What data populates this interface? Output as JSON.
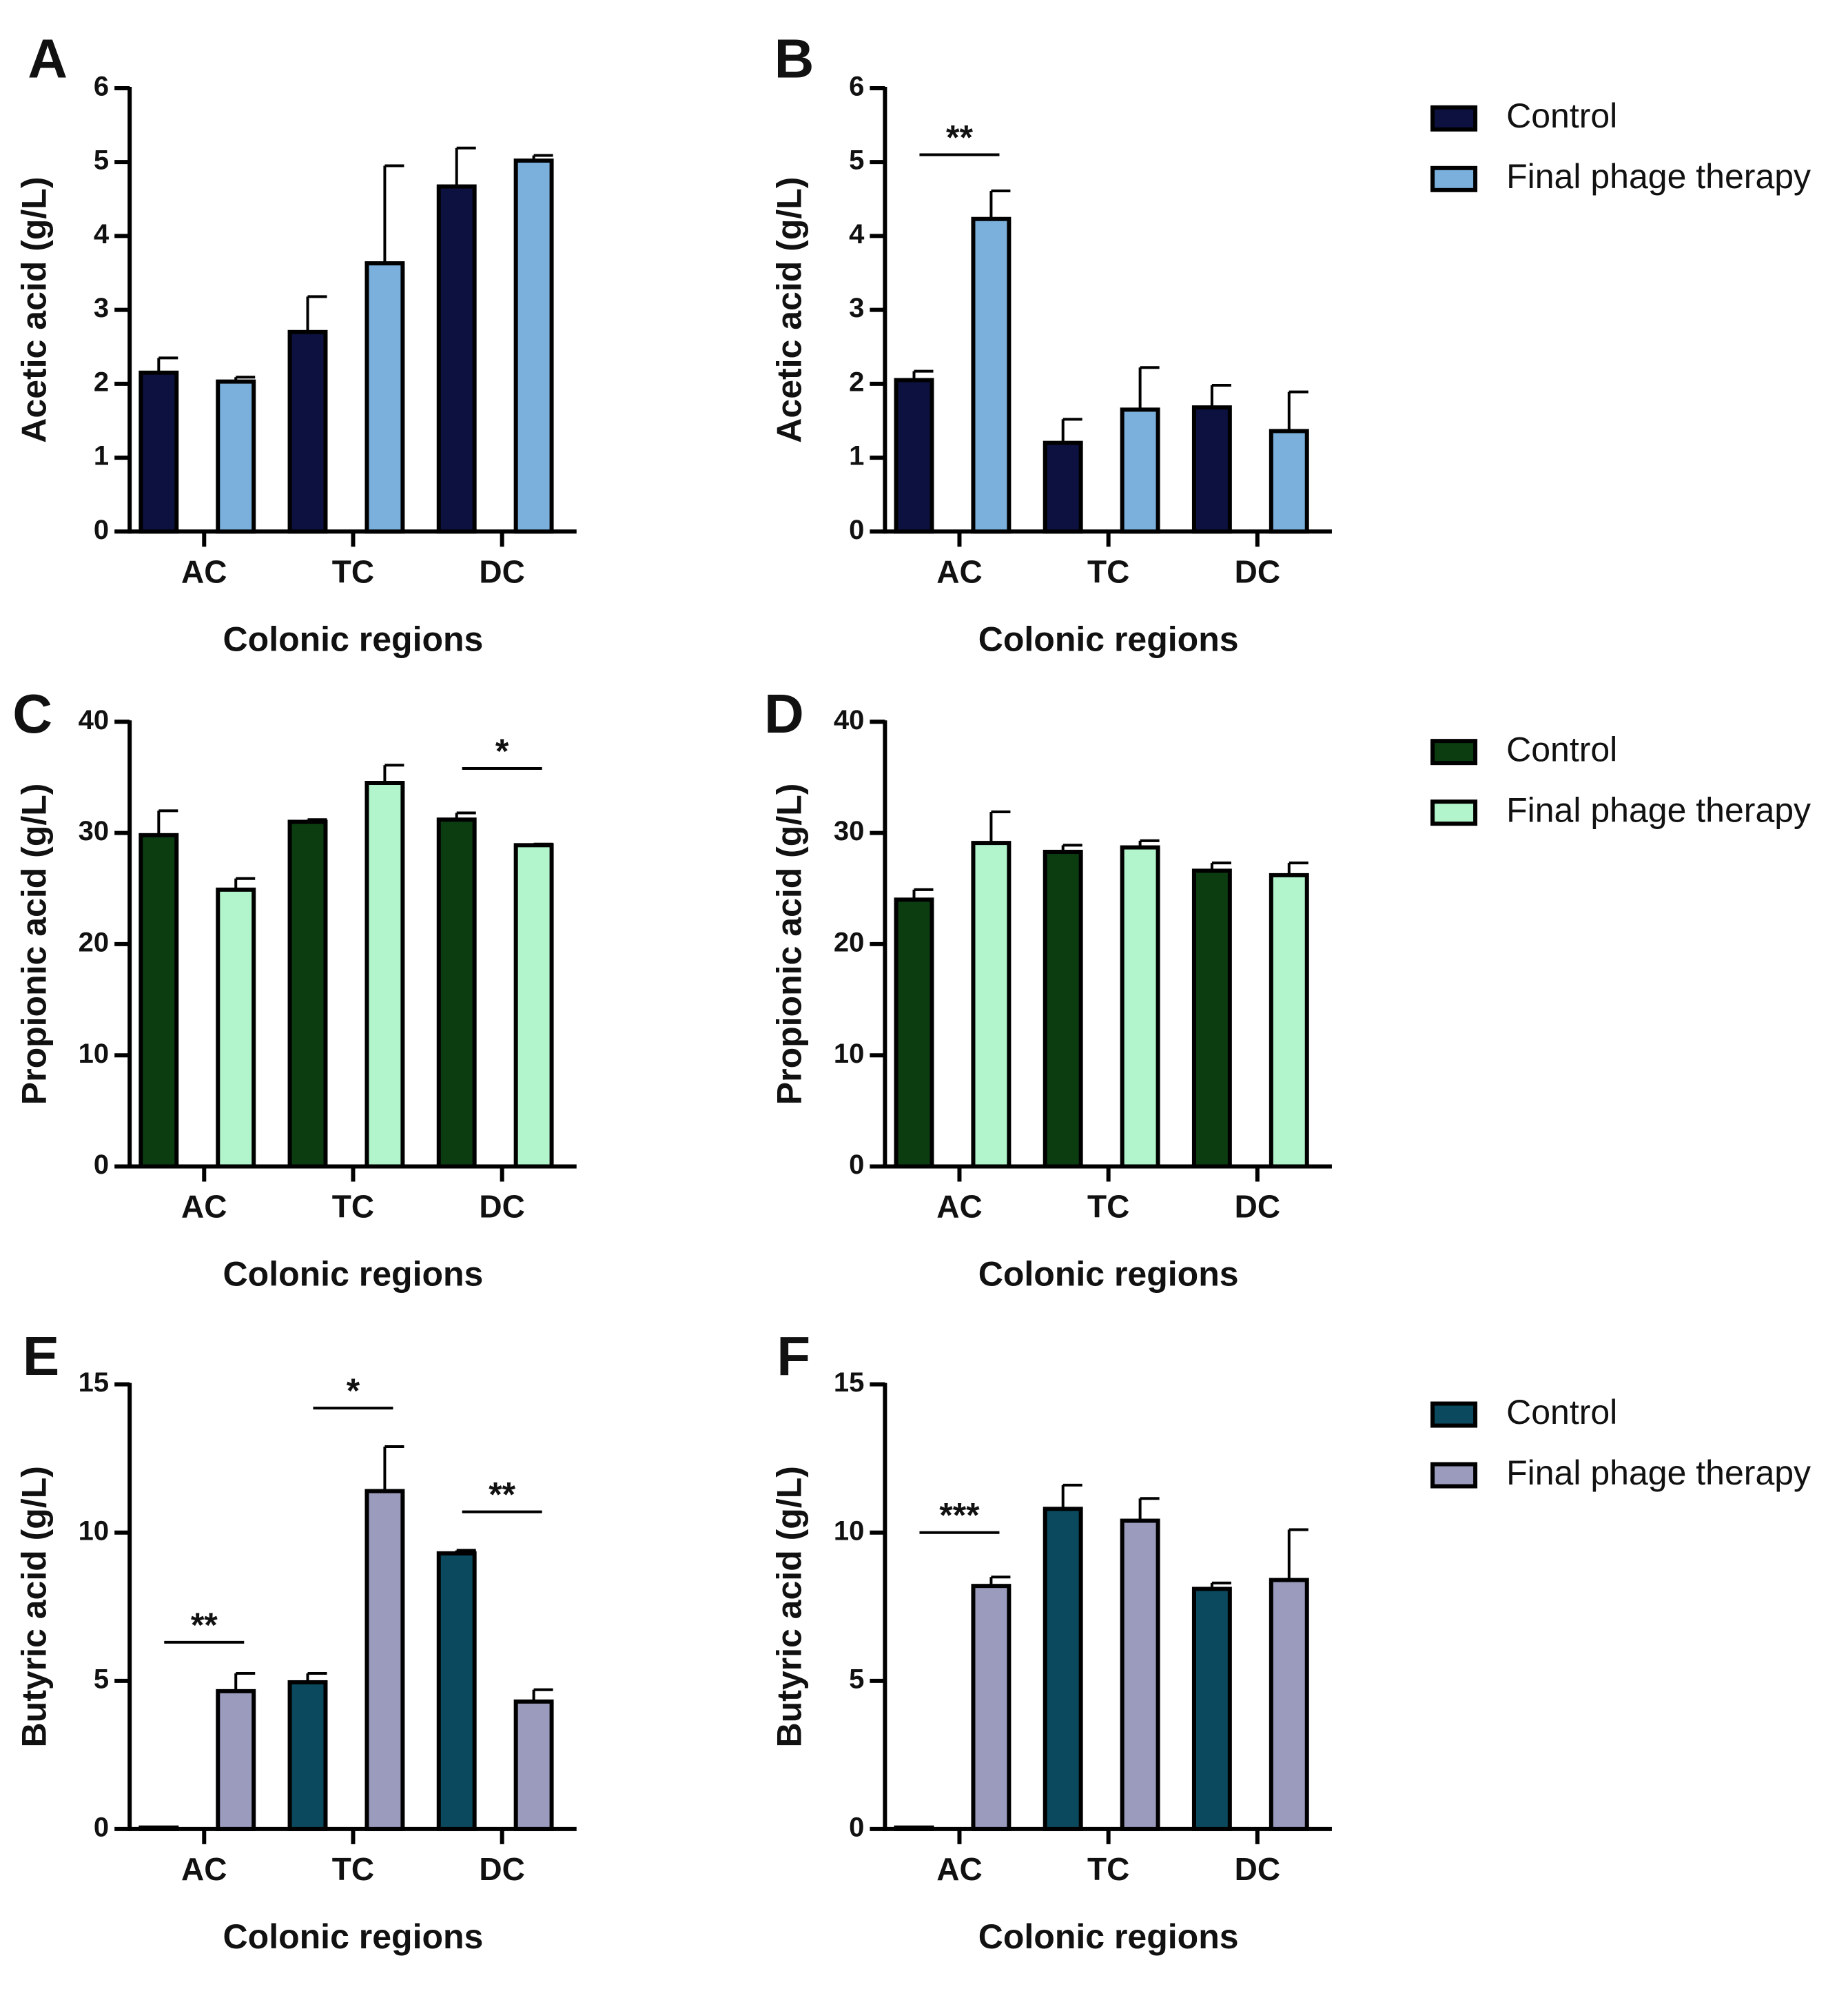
{
  "chart_data": [
    {
      "panel": "A",
      "type": "bar",
      "categories": [
        "AC",
        "TC",
        "DC"
      ],
      "xlabel": "Colonic regions",
      "ylabel": "Acetic acid (g/L)",
      "ylim": [
        0,
        6
      ],
      "yticks": [
        "0",
        "1",
        "2",
        "3",
        "4",
        "5",
        "6"
      ],
      "series": [
        {
          "name": "Control",
          "color": "#0d1140",
          "values": [
            2.15,
            2.7,
            4.67
          ],
          "errors": [
            0.2,
            0.48,
            0.52
          ]
        },
        {
          "name": "Final phage therapy",
          "color": "#7ab0db",
          "values": [
            2.03,
            3.63,
            5.02
          ],
          "errors": [
            0.06,
            1.32,
            0.07
          ]
        }
      ],
      "significance": []
    },
    {
      "panel": "B",
      "type": "bar",
      "categories": [
        "AC",
        "TC",
        "DC"
      ],
      "xlabel": "Colonic regions",
      "ylabel": "Acetic acid (g/L)",
      "ylim": [
        0,
        6
      ],
      "yticks": [
        "0",
        "1",
        "2",
        "3",
        "4",
        "5",
        "6"
      ],
      "series": [
        {
          "name": "Control",
          "color": "#0d1140",
          "values": [
            2.05,
            1.2,
            1.68
          ],
          "errors": [
            0.12,
            0.32,
            0.3
          ]
        },
        {
          "name": "Final phage therapy",
          "color": "#7ab0db",
          "values": [
            4.23,
            1.65,
            1.36
          ],
          "errors": [
            0.38,
            0.57,
            0.53
          ]
        }
      ],
      "significance": [
        {
          "category": "AC",
          "label": "**",
          "line_y": 5.1
        }
      ]
    },
    {
      "panel": "C",
      "type": "bar",
      "categories": [
        "AC",
        "TC",
        "DC"
      ],
      "xlabel": "Colonic regions",
      "ylabel": "Propionic acid (g/L)",
      "ylim": [
        0,
        40
      ],
      "yticks": [
        "0",
        "10",
        "20",
        "30",
        "40"
      ],
      "series": [
        {
          "name": "Control",
          "color": "#0b3d10",
          "values": [
            29.8,
            31.0,
            31.2
          ],
          "errors": [
            2.2,
            0.2,
            0.6
          ]
        },
        {
          "name": "Final phage therapy",
          "color": "#b2f5cc",
          "values": [
            24.9,
            34.5,
            28.9
          ],
          "errors": [
            1.0,
            1.6,
            0.1
          ]
        }
      ],
      "significance": [
        {
          "category": "DC",
          "label": "*",
          "line_y": 35.8
        }
      ]
    },
    {
      "panel": "D",
      "type": "bar",
      "categories": [
        "AC",
        "TC",
        "DC"
      ],
      "xlabel": "Colonic regions",
      "ylabel": "Propionic acid (g/L)",
      "ylim": [
        0,
        40
      ],
      "yticks": [
        "0",
        "10",
        "20",
        "30",
        "40"
      ],
      "series": [
        {
          "name": "Control",
          "color": "#0b3d10",
          "values": [
            24.0,
            28.3,
            26.6
          ],
          "errors": [
            0.9,
            0.6,
            0.7
          ]
        },
        {
          "name": "Final phage therapy",
          "color": "#b2f5cc",
          "values": [
            29.1,
            28.7,
            26.2
          ],
          "errors": [
            2.8,
            0.6,
            1.1
          ]
        }
      ],
      "significance": []
    },
    {
      "panel": "E",
      "type": "bar",
      "categories": [
        "AC",
        "TC",
        "DC"
      ],
      "xlabel": "Colonic regions",
      "ylabel": "Butyric acid (g/L)",
      "ylim": [
        0,
        15
      ],
      "yticks": [
        "0",
        "5",
        "10",
        "15"
      ],
      "series": [
        {
          "name": "Control",
          "color": "#0b4a5e",
          "values": [
            0.05,
            4.95,
            9.3
          ],
          "errors": [
            0.0,
            0.3,
            0.1
          ]
        },
        {
          "name": "Final phage therapy",
          "color": "#9b9cbd",
          "values": [
            4.65,
            11.4,
            4.3
          ],
          "errors": [
            0.6,
            1.5,
            0.4
          ]
        }
      ],
      "significance": [
        {
          "category": "AC",
          "label": "**",
          "line_y": 6.3
        },
        {
          "category": "TC",
          "label": "*",
          "line_y": 14.2
        },
        {
          "category": "DC",
          "label": "**",
          "line_y": 10.7
        }
      ]
    },
    {
      "panel": "F",
      "type": "bar",
      "categories": [
        "AC",
        "TC",
        "DC"
      ],
      "xlabel": "Colonic regions",
      "ylabel": "Butyric acid (g/L)",
      "ylim": [
        0,
        15
      ],
      "yticks": [
        "0",
        "5",
        "10",
        "15"
      ],
      "series": [
        {
          "name": "Control",
          "color": "#0b4a5e",
          "values": [
            0.05,
            10.8,
            8.1
          ],
          "errors": [
            0.0,
            0.8,
            0.2
          ]
        },
        {
          "name": "Final phage therapy",
          "color": "#9b9cbd",
          "values": [
            8.2,
            10.4,
            8.4
          ],
          "errors": [
            0.3,
            0.75,
            1.7
          ]
        }
      ],
      "significance": [
        {
          "category": "AC",
          "label": "***",
          "line_y": 10.0
        }
      ]
    }
  ],
  "legends": [
    {
      "items": [
        {
          "label": "Control",
          "color": "#0d1140"
        },
        {
          "label": "Final phage therapy",
          "color": "#7ab0db"
        }
      ]
    },
    {
      "items": [
        {
          "label": "Control",
          "color": "#0b3d10"
        },
        {
          "label": "Final phage therapy",
          "color": "#b2f5cc"
        }
      ]
    },
    {
      "items": [
        {
          "label": "Control",
          "color": "#0b4a5e"
        },
        {
          "label": "Final phage therapy",
          "color": "#9b9cbd"
        }
      ]
    }
  ]
}
